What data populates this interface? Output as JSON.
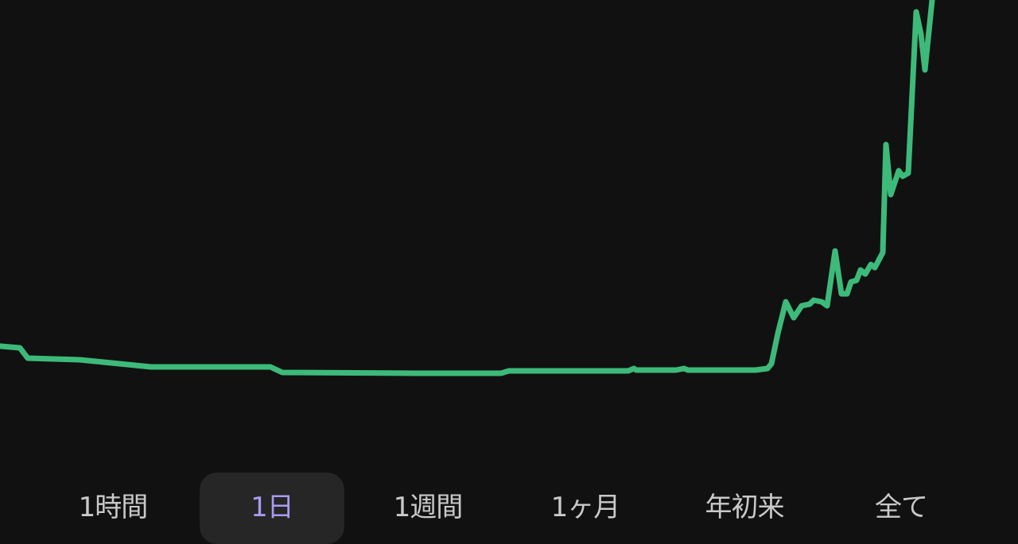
{
  "chart_data": {
    "type": "line",
    "title": "",
    "xlabel": "",
    "ylabel": "",
    "xlim": [
      0,
      100
    ],
    "ylim": [
      0,
      100
    ],
    "grid": false,
    "axes_visible": false,
    "line_color": "#3dba7a",
    "series": [
      {
        "x": [
          0,
          1.95,
          2.73,
          7.81,
          9.38,
          11.72,
          14.84,
          21.88,
          26.56,
          27.73,
          40.63,
          49.22,
          50.0,
          61.72,
          62.27,
          62.5,
          66.41,
          67.19,
          67.58,
          74.22,
          75.39,
          75.78,
          76.41,
          77.19,
          77.97,
          78.75,
          79.53,
          79.92,
          80.7,
          81.25,
          82.03,
          82.66,
          83.2,
          83.59,
          84.14,
          84.53,
          85.0,
          85.55,
          85.94,
          86.72,
          87.03,
          87.5,
          88.28,
          88.67,
          89.22,
          90.0,
          90.47,
          90.86,
          91.56
        ],
        "y": [
          9.2,
          8.75,
          6.04,
          5.63,
          5.21,
          4.58,
          3.75,
          3.75,
          3.75,
          2.29,
          2.08,
          2.08,
          2.71,
          2.71,
          3.33,
          2.92,
          2.92,
          3.33,
          2.92,
          2.92,
          3.33,
          4.58,
          12.5,
          20.83,
          16.67,
          19.79,
          20.21,
          21.25,
          20.83,
          19.79,
          34.17,
          22.92,
          22.92,
          26.04,
          26.46,
          29.17,
          28.13,
          30.63,
          29.79,
          33.75,
          62.08,
          48.96,
          55.21,
          53.75,
          54.58,
          96.88,
          91.04,
          81.67,
          100
        ]
      }
    ]
  },
  "range_tabs": {
    "selected_index": 1,
    "selected_color": "#a99bf0",
    "items": [
      {
        "label": "1時間"
      },
      {
        "label": "1日"
      },
      {
        "label": "1週間"
      },
      {
        "label": "1ヶ月"
      },
      {
        "label": "年初来"
      },
      {
        "label": "全て"
      }
    ]
  }
}
